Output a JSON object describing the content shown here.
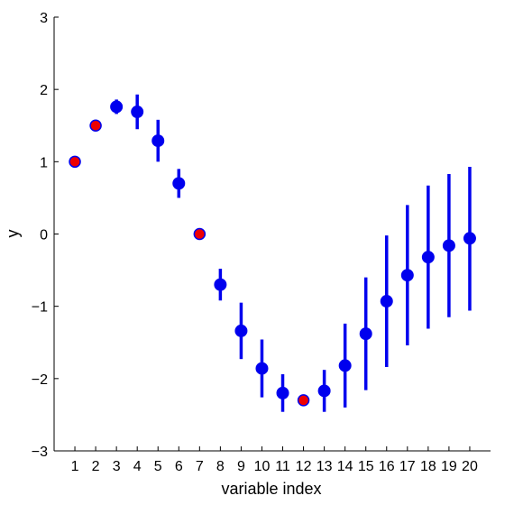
{
  "chart_data": {
    "type": "scatter",
    "xlabel": "variable index",
    "ylabel": "y",
    "xlim": [
      0,
      21
    ],
    "ylim": [
      -3,
      3
    ],
    "x_ticks": [
      "1",
      "2",
      "3",
      "4",
      "5",
      "6",
      "7",
      "8",
      "9",
      "10",
      "11",
      "12",
      "13",
      "14",
      "15",
      "16",
      "17",
      "18",
      "19",
      "20"
    ],
    "y_ticks": [
      "3",
      "2",
      "1",
      "0",
      "−1",
      "−2",
      "−3"
    ],
    "y_tick_values": [
      3,
      2,
      1,
      0,
      -1,
      -2,
      -3
    ],
    "grid": false,
    "colors": {
      "predicted_point": "#0000ee",
      "error_bar": "#0000ee",
      "observed_point_fill": "#ee0000",
      "observed_point_edge": "#0000ee",
      "axis": "#000000"
    },
    "series": [
      {
        "kind": "observed",
        "points": [
          {
            "x": 1,
            "y": 1.0
          },
          {
            "x": 2,
            "y": 1.5
          },
          {
            "x": 7,
            "y": 0.0
          },
          {
            "x": 12,
            "y": -2.3
          }
        ]
      },
      {
        "kind": "predicted_with_errorbars",
        "points": [
          {
            "x": 3,
            "y": 1.76,
            "low": 1.66,
            "high": 1.86
          },
          {
            "x": 4,
            "y": 1.69,
            "low": 1.45,
            "high": 1.93
          },
          {
            "x": 5,
            "y": 1.29,
            "low": 1.0,
            "high": 1.58
          },
          {
            "x": 6,
            "y": 0.7,
            "low": 0.5,
            "high": 0.9
          },
          {
            "x": 8,
            "y": -0.7,
            "low": -0.92,
            "high": -0.48
          },
          {
            "x": 9,
            "y": -1.34,
            "low": -1.73,
            "high": -0.95
          },
          {
            "x": 10,
            "y": -1.86,
            "low": -2.26,
            "high": -1.46
          },
          {
            "x": 11,
            "y": -2.2,
            "low": -2.46,
            "high": -1.94
          },
          {
            "x": 13,
            "y": -2.17,
            "low": -2.46,
            "high": -1.88
          },
          {
            "x": 14,
            "y": -1.82,
            "low": -2.4,
            "high": -1.24
          },
          {
            "x": 15,
            "y": -1.38,
            "low": -2.16,
            "high": -0.6
          },
          {
            "x": 16,
            "y": -0.93,
            "low": -1.84,
            "high": -0.02
          },
          {
            "x": 17,
            "y": -0.57,
            "low": -1.54,
            "high": 0.4
          },
          {
            "x": 18,
            "y": -0.32,
            "low": -1.31,
            "high": 0.67
          },
          {
            "x": 19,
            "y": -0.16,
            "low": -1.15,
            "high": 0.83
          },
          {
            "x": 20,
            "y": -0.06,
            "low": -1.06,
            "high": 0.93
          }
        ]
      }
    ]
  }
}
